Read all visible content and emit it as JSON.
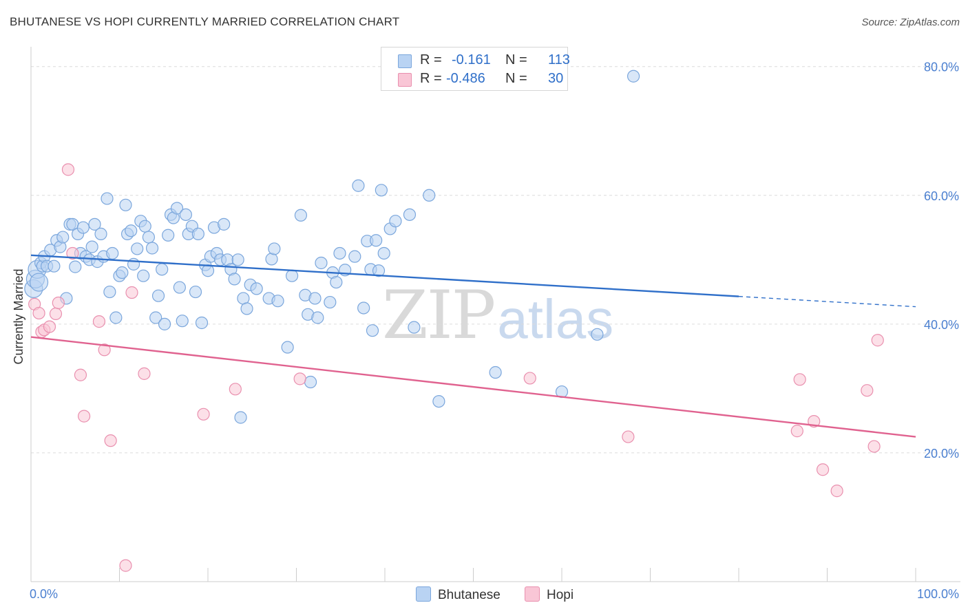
{
  "header": {
    "title": "BHUTANESE VS HOPI CURRENTLY MARRIED CORRELATION CHART",
    "source": "Source: ZipAtlas.com"
  },
  "watermark": {
    "zip": "ZIP",
    "atlas": "atlas"
  },
  "legend": {
    "r_label": "R =",
    "n_label": "N =",
    "entries": [
      {
        "name": "Bhutanese",
        "r": "-0.161",
        "n": "113"
      },
      {
        "name": "Hopi",
        "r": "-0.486",
        "n": "30"
      }
    ]
  },
  "colors": {
    "blue_fill": "#b9d3f3",
    "blue_stroke": "#7aa6dc",
    "blue_line": "#2f6fc9",
    "pink_fill": "#f9c6d6",
    "pink_stroke": "#e98fae",
    "pink_line": "#e0628f",
    "axis_text": "#4a7fd0",
    "grid": "#dcdcdc"
  },
  "chart_data": {
    "type": "scatter",
    "title": "BHUTANESE VS HOPI CURRENTLY MARRIED CORRELATION CHART",
    "xlabel": "",
    "ylabel": "Currently Married",
    "xlim": [
      0,
      100
    ],
    "ylim": [
      0,
      82
    ],
    "x_tick_labels": [
      "0.0%",
      "100.0%"
    ],
    "y_ticks": [
      20,
      40,
      60,
      80
    ],
    "y_tick_labels": [
      "20.0%",
      "40.0%",
      "60.0%",
      "80.0%"
    ],
    "grid": true,
    "series": [
      {
        "name": "Bhutanese",
        "r": -0.161,
        "n": 113,
        "trend": {
          "x0": 0,
          "y0": 50.7,
          "x1": 80,
          "y1": 44.3,
          "dashed_to_x": 100,
          "dashed_to_y": 42.7
        },
        "points": [
          [
            0.3,
            45.5
          ],
          [
            0.5,
            47.0
          ],
          [
            0.7,
            48.5
          ],
          [
            0.9,
            46.5
          ],
          [
            1.1,
            49.5
          ],
          [
            1.3,
            49.0
          ],
          [
            1.5,
            50.5
          ],
          [
            1.8,
            49.0
          ],
          [
            2.2,
            51.5
          ],
          [
            2.6,
            49.0
          ],
          [
            2.9,
            53.0
          ],
          [
            3.3,
            52.0
          ],
          [
            3.6,
            53.5
          ],
          [
            4.0,
            44.0
          ],
          [
            4.4,
            55.5
          ],
          [
            4.7,
            55.5
          ],
          [
            5.0,
            48.9
          ],
          [
            5.3,
            54.0
          ],
          [
            5.6,
            51.0
          ],
          [
            5.9,
            55.0
          ],
          [
            6.2,
            50.5
          ],
          [
            6.6,
            50.0
          ],
          [
            6.9,
            52.0
          ],
          [
            7.2,
            55.5
          ],
          [
            7.5,
            49.7
          ],
          [
            7.9,
            54.0
          ],
          [
            8.2,
            50.5
          ],
          [
            8.6,
            59.5
          ],
          [
            8.9,
            45.0
          ],
          [
            9.2,
            51.0
          ],
          [
            9.6,
            41.0
          ],
          [
            10.0,
            47.5
          ],
          [
            10.3,
            48.0
          ],
          [
            10.7,
            58.5
          ],
          [
            10.9,
            54.0
          ],
          [
            11.3,
            54.5
          ],
          [
            11.6,
            49.3
          ],
          [
            12.0,
            51.7
          ],
          [
            12.4,
            56.0
          ],
          [
            12.7,
            47.5
          ],
          [
            12.9,
            55.2
          ],
          [
            13.3,
            53.5
          ],
          [
            13.7,
            51.8
          ],
          [
            14.1,
            41.0
          ],
          [
            14.4,
            44.4
          ],
          [
            14.8,
            48.5
          ],
          [
            15.1,
            40.0
          ],
          [
            15.5,
            53.8
          ],
          [
            15.8,
            57.0
          ],
          [
            16.1,
            56.5
          ],
          [
            16.5,
            58.0
          ],
          [
            16.8,
            45.7
          ],
          [
            17.1,
            40.5
          ],
          [
            17.5,
            57.0
          ],
          [
            17.8,
            54.0
          ],
          [
            18.2,
            55.2
          ],
          [
            18.6,
            45.0
          ],
          [
            18.9,
            54.0
          ],
          [
            19.3,
            40.2
          ],
          [
            19.7,
            49.2
          ],
          [
            20.0,
            48.3
          ],
          [
            20.3,
            50.5
          ],
          [
            20.7,
            55.0
          ],
          [
            21.0,
            51.0
          ],
          [
            21.4,
            50.0
          ],
          [
            21.8,
            55.5
          ],
          [
            22.2,
            50.0
          ],
          [
            22.6,
            48.5
          ],
          [
            23.0,
            47.0
          ],
          [
            23.4,
            50.0
          ],
          [
            23.7,
            25.5
          ],
          [
            24.0,
            44.0
          ],
          [
            24.4,
            42.4
          ],
          [
            24.8,
            46.1
          ],
          [
            25.5,
            45.5
          ],
          [
            26.9,
            44.0
          ],
          [
            27.2,
            50.1
          ],
          [
            27.5,
            51.7
          ],
          [
            27.9,
            43.6
          ],
          [
            29.0,
            36.4
          ],
          [
            29.5,
            47.5
          ],
          [
            30.5,
            56.9
          ],
          [
            31.0,
            44.5
          ],
          [
            31.3,
            41.5
          ],
          [
            31.6,
            31.0
          ],
          [
            32.1,
            44.0
          ],
          [
            32.4,
            41.0
          ],
          [
            32.8,
            49.5
          ],
          [
            33.8,
            43.4
          ],
          [
            34.1,
            48.0
          ],
          [
            34.5,
            46.5
          ],
          [
            34.9,
            51.0
          ],
          [
            35.5,
            48.4
          ],
          [
            36.6,
            50.5
          ],
          [
            37.0,
            61.5
          ],
          [
            37.6,
            42.5
          ],
          [
            38.0,
            52.9
          ],
          [
            38.4,
            48.5
          ],
          [
            38.6,
            39.0
          ],
          [
            39.0,
            53.0
          ],
          [
            39.3,
            48.3
          ],
          [
            39.6,
            60.8
          ],
          [
            39.9,
            51.0
          ],
          [
            40.6,
            54.8
          ],
          [
            41.2,
            56.0
          ],
          [
            42.8,
            57.0
          ],
          [
            43.3,
            39.5
          ],
          [
            45.0,
            60.0
          ],
          [
            46.1,
            28.0
          ],
          [
            52.5,
            32.5
          ],
          [
            60.0,
            29.5
          ],
          [
            64.0,
            38.4
          ],
          [
            68.1,
            78.5
          ]
        ]
      },
      {
        "name": "Hopi",
        "r": -0.486,
        "n": 30,
        "trend": {
          "x0": 0,
          "y0": 38.0,
          "x1": 100,
          "y1": 22.5
        },
        "points": [
          [
            0.4,
            43.1
          ],
          [
            0.9,
            41.7
          ],
          [
            1.2,
            38.8
          ],
          [
            1.5,
            39.1
          ],
          [
            2.1,
            39.6
          ],
          [
            2.8,
            41.6
          ],
          [
            3.1,
            43.3
          ],
          [
            4.2,
            64.0
          ],
          [
            4.7,
            51.0
          ],
          [
            5.6,
            32.1
          ],
          [
            6.0,
            25.7
          ],
          [
            7.7,
            40.4
          ],
          [
            8.3,
            36.0
          ],
          [
            9.0,
            21.9
          ],
          [
            10.7,
            2.5
          ],
          [
            11.4,
            44.9
          ],
          [
            12.8,
            32.3
          ],
          [
            19.5,
            26.0
          ],
          [
            23.1,
            29.9
          ],
          [
            30.4,
            31.5
          ],
          [
            56.4,
            31.6
          ],
          [
            67.5,
            22.5
          ],
          [
            86.6,
            23.4
          ],
          [
            86.9,
            31.4
          ],
          [
            88.5,
            24.9
          ],
          [
            89.5,
            17.4
          ],
          [
            91.1,
            14.1
          ],
          [
            94.5,
            29.7
          ],
          [
            95.3,
            21.0
          ],
          [
            95.7,
            37.5
          ]
        ]
      }
    ]
  }
}
